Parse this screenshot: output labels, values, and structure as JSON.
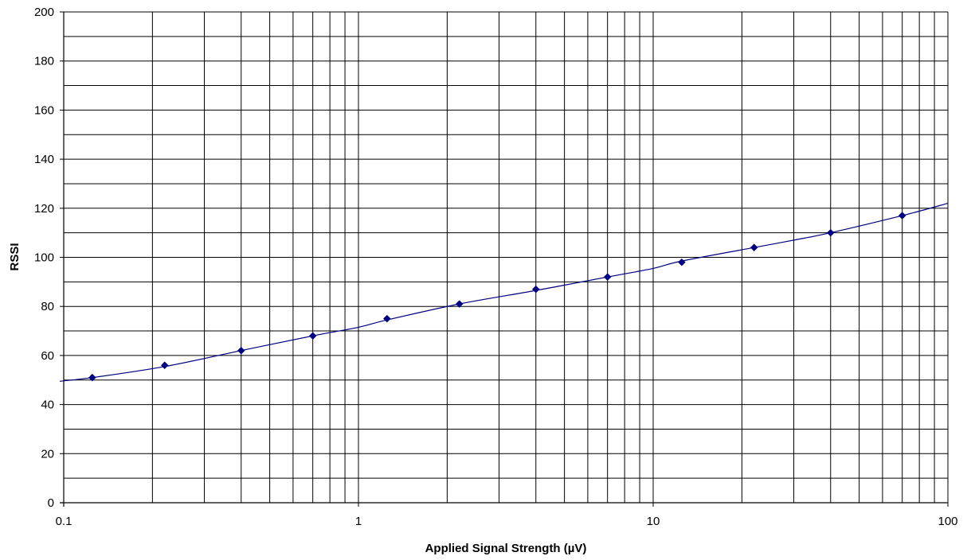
{
  "chart_data": {
    "type": "scatter",
    "title": "",
    "xlabel": "Applied Signal Strength (µV)",
    "ylabel": "RSSI",
    "x_scale": "log",
    "xlim": [
      0.1,
      100
    ],
    "ylim": [
      0,
      200
    ],
    "x_ticks": [
      "0.1",
      "1",
      "10",
      "100"
    ],
    "y_ticks": [
      "0",
      "20",
      "40",
      "60",
      "80",
      "100",
      "120",
      "140",
      "160",
      "180",
      "200"
    ],
    "grid": true,
    "legend": "none",
    "series": [
      {
        "marker": "diamond",
        "color": "#000080",
        "x": [
          0.125,
          0.22,
          0.4,
          0.7,
          1.25,
          2.2,
          4.0,
          7.0,
          12.5,
          22.0,
          40.0,
          70.0
        ],
        "y": [
          51,
          56,
          62,
          68,
          75,
          81,
          87,
          92,
          98,
          104,
          110,
          117
        ]
      }
    ],
    "trendline": {
      "color": "#000080",
      "x": [
        0.09,
        0.125,
        0.22,
        0.4,
        0.7,
        1.0,
        1.25,
        2.2,
        4.0,
        7.0,
        10.0,
        12.5,
        22.0,
        30.0,
        40.0,
        70.0,
        100.0
      ],
      "y": [
        49.5,
        51,
        55.5,
        62,
        68,
        71.5,
        74.5,
        81,
        86.5,
        92,
        95.5,
        98.5,
        104,
        107,
        110,
        117,
        122
      ]
    }
  }
}
